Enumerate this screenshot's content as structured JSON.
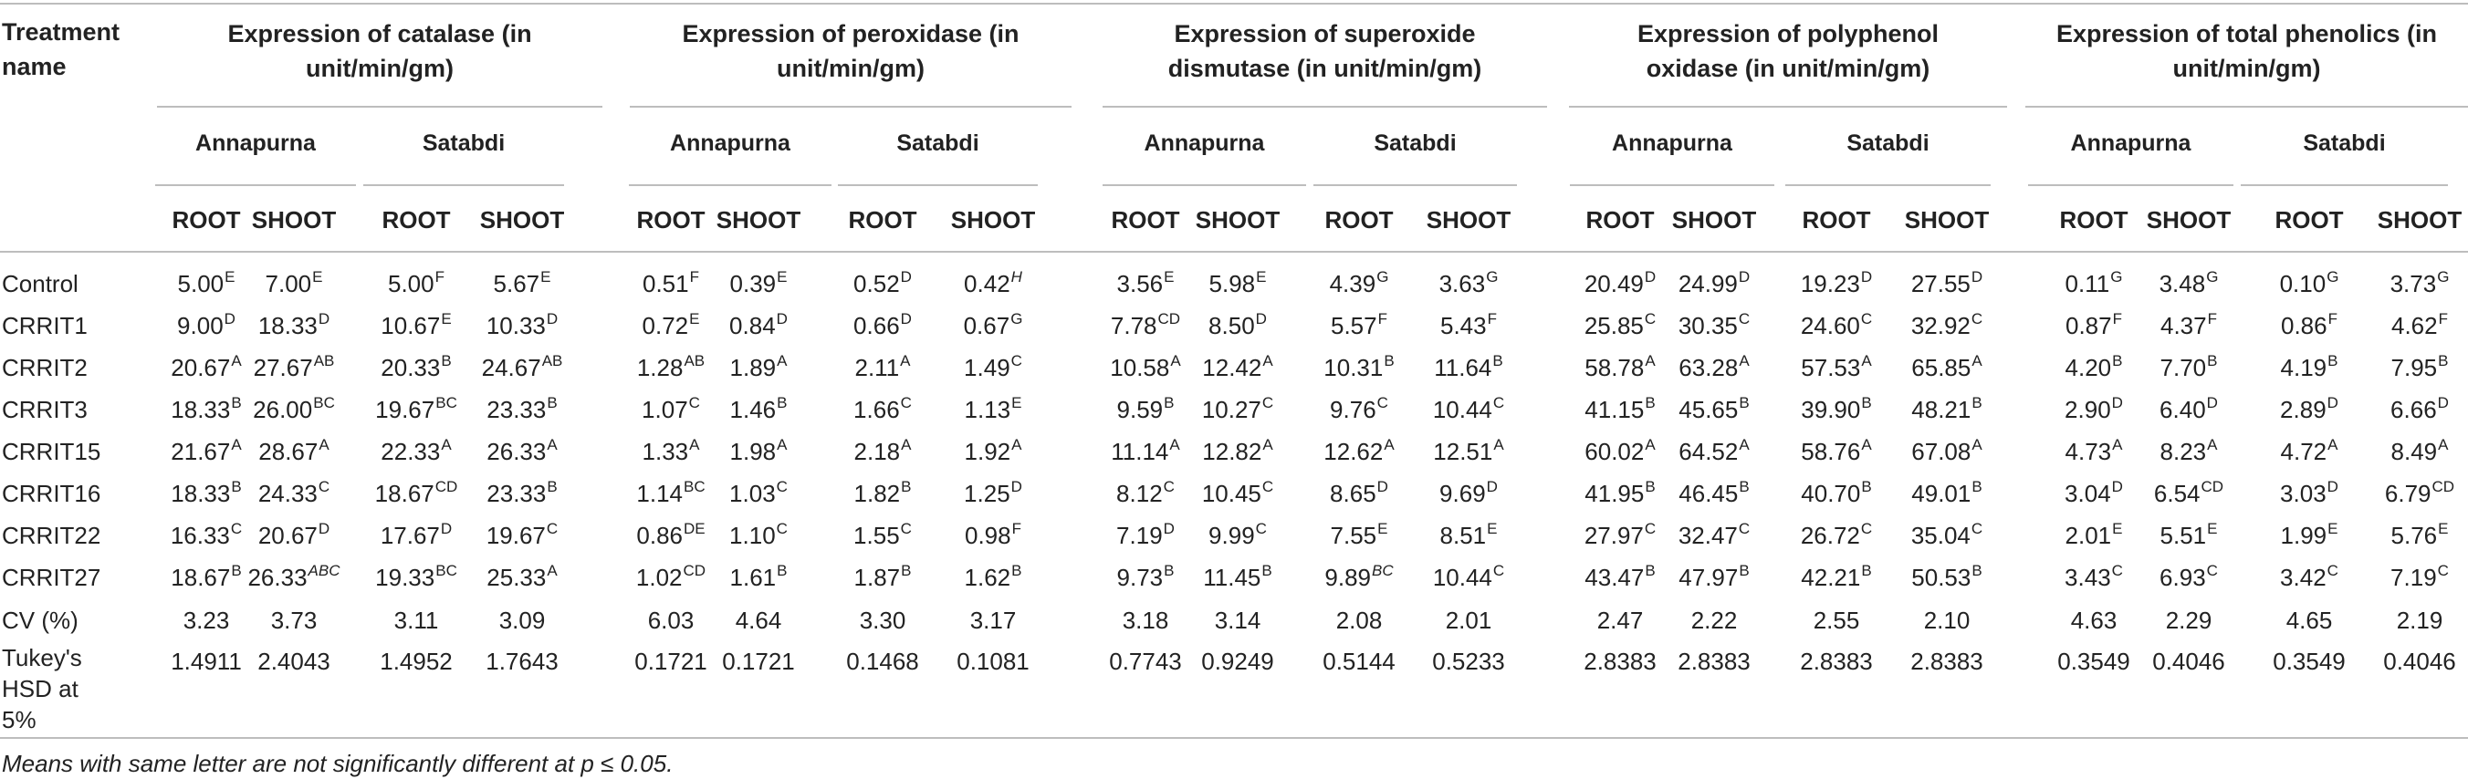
{
  "table": {
    "treatment_header": "Treatment name",
    "groups": [
      "Expression of catalase (in unit/min/gm)",
      "Expression of peroxidase (in unit/min/gm)",
      "Expression of superoxide dismutase (in unit/min/gm)",
      "Expression of polyphenol oxidase (in unit/min/gm)",
      "Expression of total phenolics (in unit/min/gm)"
    ],
    "varieties": [
      "Annapurna",
      "Satabdi"
    ],
    "parts": [
      "ROOT",
      "SHOOT"
    ],
    "rows": [
      {
        "name": "Control",
        "cells": [
          [
            "5.00",
            "E"
          ],
          [
            "7.00",
            "E"
          ],
          [
            "5.00",
            "F"
          ],
          [
            "5.67",
            "E"
          ],
          [
            "0.51",
            "F"
          ],
          [
            "0.39",
            "E"
          ],
          [
            "0.52",
            "D"
          ],
          [
            "0.42",
            "H"
          ],
          [
            "3.56",
            "E"
          ],
          [
            "5.98",
            "E"
          ],
          [
            "4.39",
            "G"
          ],
          [
            "3.63",
            "G"
          ],
          [
            "20.49",
            "D"
          ],
          [
            "24.99",
            "D"
          ],
          [
            "19.23",
            "D"
          ],
          [
            "27.55",
            "D"
          ],
          [
            "0.11",
            "G"
          ],
          [
            "3.48",
            "G"
          ],
          [
            "0.10",
            "G"
          ],
          [
            "3.73",
            "G"
          ]
        ]
      },
      {
        "name": "CRRIT1",
        "cells": [
          [
            "9.00",
            "D"
          ],
          [
            "18.33",
            "D"
          ],
          [
            "10.67",
            "E"
          ],
          [
            "10.33",
            "D"
          ],
          [
            "0.72",
            "E"
          ],
          [
            "0.84",
            "D"
          ],
          [
            "0.66",
            "D"
          ],
          [
            "0.67",
            "G"
          ],
          [
            "7.78",
            "CD"
          ],
          [
            "8.50",
            "D"
          ],
          [
            "5.57",
            "F"
          ],
          [
            "5.43",
            "F"
          ],
          [
            "25.85",
            "C"
          ],
          [
            "30.35",
            "C"
          ],
          [
            "24.60",
            "C"
          ],
          [
            "32.92",
            "C"
          ],
          [
            "0.87",
            "F"
          ],
          [
            "4.37",
            "F"
          ],
          [
            "0.86",
            "F"
          ],
          [
            "4.62",
            "F"
          ]
        ]
      },
      {
        "name": "CRRIT2",
        "cells": [
          [
            "20.67",
            "A"
          ],
          [
            "27.67",
            "AB"
          ],
          [
            "20.33",
            "B"
          ],
          [
            "24.67",
            "AB"
          ],
          [
            "1.28",
            "AB"
          ],
          [
            "1.89",
            "A"
          ],
          [
            "2.11",
            "A"
          ],
          [
            "1.49",
            "C"
          ],
          [
            "10.58",
            "A"
          ],
          [
            "12.42",
            "A"
          ],
          [
            "10.31",
            "B"
          ],
          [
            "11.64",
            "B"
          ],
          [
            "58.78",
            "A"
          ],
          [
            "63.28",
            "A"
          ],
          [
            "57.53",
            "A"
          ],
          [
            "65.85",
            "A"
          ],
          [
            "4.20",
            "B"
          ],
          [
            "7.70",
            "B"
          ],
          [
            "4.19",
            "B"
          ],
          [
            "7.95",
            "B"
          ]
        ]
      },
      {
        "name": "CRRIT3",
        "cells": [
          [
            "18.33",
            "B"
          ],
          [
            "26.00",
            "BC"
          ],
          [
            "19.67",
            "BC"
          ],
          [
            "23.33",
            "B"
          ],
          [
            "1.07",
            "C"
          ],
          [
            "1.46",
            "B"
          ],
          [
            "1.66",
            "C"
          ],
          [
            "1.13",
            "E"
          ],
          [
            "9.59",
            "B"
          ],
          [
            "10.27",
            "C"
          ],
          [
            "9.76",
            "C"
          ],
          [
            "10.44",
            "C"
          ],
          [
            "41.15",
            "B"
          ],
          [
            "45.65",
            "B"
          ],
          [
            "39.90",
            "B"
          ],
          [
            "48.21",
            "B"
          ],
          [
            "2.90",
            "D"
          ],
          [
            "6.40",
            "D"
          ],
          [
            "2.89",
            "D"
          ],
          [
            "6.66",
            "D"
          ]
        ]
      },
      {
        "name": "CRRIT15",
        "cells": [
          [
            "21.67",
            "A"
          ],
          [
            "28.67",
            "A"
          ],
          [
            "22.33",
            "A"
          ],
          [
            "26.33",
            "A"
          ],
          [
            "1.33",
            "A"
          ],
          [
            "1.98",
            "A"
          ],
          [
            "2.18",
            "A"
          ],
          [
            "1.92",
            "A"
          ],
          [
            "11.14",
            "A"
          ],
          [
            "12.82",
            "A"
          ],
          [
            "12.62",
            "A"
          ],
          [
            "12.51",
            "A"
          ],
          [
            "60.02",
            "A"
          ],
          [
            "64.52",
            "A"
          ],
          [
            "58.76",
            "A"
          ],
          [
            "67.08",
            "A"
          ],
          [
            "4.73",
            "A"
          ],
          [
            "8.23",
            "A"
          ],
          [
            "4.72",
            "A"
          ],
          [
            "8.49",
            "A"
          ]
        ]
      },
      {
        "name": "CRRIT16",
        "cells": [
          [
            "18.33",
            "B"
          ],
          [
            "24.33",
            "C"
          ],
          [
            "18.67",
            "CD"
          ],
          [
            "23.33",
            "B"
          ],
          [
            "1.14",
            "BC"
          ],
          [
            "1.03",
            "C"
          ],
          [
            "1.82",
            "B"
          ],
          [
            "1.25",
            "D"
          ],
          [
            "8.12",
            "C"
          ],
          [
            "10.45",
            "C"
          ],
          [
            "8.65",
            "D"
          ],
          [
            "9.69",
            "D"
          ],
          [
            "41.95",
            "B"
          ],
          [
            "46.45",
            "B"
          ],
          [
            "40.70",
            "B"
          ],
          [
            "49.01",
            "B"
          ],
          [
            "3.04",
            "D"
          ],
          [
            "6.54",
            "CD"
          ],
          [
            "3.03",
            "D"
          ],
          [
            "6.79",
            "CD"
          ]
        ]
      },
      {
        "name": "CRRIT22",
        "cells": [
          [
            "16.33",
            "C"
          ],
          [
            "20.67",
            "D"
          ],
          [
            "17.67",
            "D"
          ],
          [
            "19.67",
            "C"
          ],
          [
            "0.86",
            "DE"
          ],
          [
            "1.10",
            "C"
          ],
          [
            "1.55",
            "C"
          ],
          [
            "0.98",
            "F"
          ],
          [
            "7.19",
            "D"
          ],
          [
            "9.99",
            "C"
          ],
          [
            "7.55",
            "E"
          ],
          [
            "8.51",
            "E"
          ],
          [
            "27.97",
            "C"
          ],
          [
            "32.47",
            "C"
          ],
          [
            "26.72",
            "C"
          ],
          [
            "35.04",
            "C"
          ],
          [
            "2.01",
            "E"
          ],
          [
            "5.51",
            "E"
          ],
          [
            "1.99",
            "E"
          ],
          [
            "5.76",
            "E"
          ]
        ]
      },
      {
        "name": "CRRIT27",
        "cells": [
          [
            "18.67",
            "B"
          ],
          [
            "26.33",
            "ABC"
          ],
          [
            "19.33",
            "BC"
          ],
          [
            "25.33",
            "A"
          ],
          [
            "1.02",
            "CD"
          ],
          [
            "1.61",
            "B"
          ],
          [
            "1.87",
            "B"
          ],
          [
            "1.62",
            "B"
          ],
          [
            "9.73",
            "B"
          ],
          [
            "11.45",
            "B"
          ],
          [
            "9.89",
            "BC"
          ],
          [
            "10.44",
            "C"
          ],
          [
            "43.47",
            "B"
          ],
          [
            "47.97",
            "B"
          ],
          [
            "42.21",
            "B"
          ],
          [
            "50.53",
            "B"
          ],
          [
            "3.43",
            "C"
          ],
          [
            "6.93",
            "C"
          ],
          [
            "3.42",
            "C"
          ],
          [
            "7.19",
            "C"
          ]
        ]
      },
      {
        "name": "CV (%)",
        "cells": [
          [
            "3.23",
            ""
          ],
          [
            "3.73",
            ""
          ],
          [
            "3.11",
            ""
          ],
          [
            "3.09",
            ""
          ],
          [
            "6.03",
            ""
          ],
          [
            "4.64",
            ""
          ],
          [
            "3.30",
            ""
          ],
          [
            "3.17",
            ""
          ],
          [
            "3.18",
            ""
          ],
          [
            "3.14",
            ""
          ],
          [
            "2.08",
            ""
          ],
          [
            "2.01",
            ""
          ],
          [
            "2.47",
            ""
          ],
          [
            "2.22",
            ""
          ],
          [
            "2.55",
            ""
          ],
          [
            "2.10",
            ""
          ],
          [
            "4.63",
            ""
          ],
          [
            "2.29",
            ""
          ],
          [
            "4.65",
            ""
          ],
          [
            "2.19",
            ""
          ]
        ]
      },
      {
        "name": "Tukey's HSD at 5%",
        "cells": [
          [
            "1.4911",
            ""
          ],
          [
            "2.4043",
            ""
          ],
          [
            "1.4952",
            ""
          ],
          [
            "1.7643",
            ""
          ],
          [
            "0.1721",
            ""
          ],
          [
            "0.1721",
            ""
          ],
          [
            "0.1468",
            ""
          ],
          [
            "0.1081",
            ""
          ],
          [
            "0.7743",
            ""
          ],
          [
            "0.9249",
            ""
          ],
          [
            "0.5144",
            ""
          ],
          [
            "0.5233",
            ""
          ],
          [
            "2.8383",
            ""
          ],
          [
            "2.8383",
            ""
          ],
          [
            "2.8383",
            ""
          ],
          [
            "2.8383",
            ""
          ],
          [
            "0.3549",
            ""
          ],
          [
            "0.4046",
            ""
          ],
          [
            "0.3549",
            ""
          ],
          [
            "0.4046",
            ""
          ]
        ]
      }
    ],
    "italic_superscripts": [
      [
        0,
        7
      ],
      [
        7,
        1
      ],
      [
        7,
        10
      ]
    ],
    "footnote": "Means with same letter are not significantly different at p ≤ 0.05."
  }
}
